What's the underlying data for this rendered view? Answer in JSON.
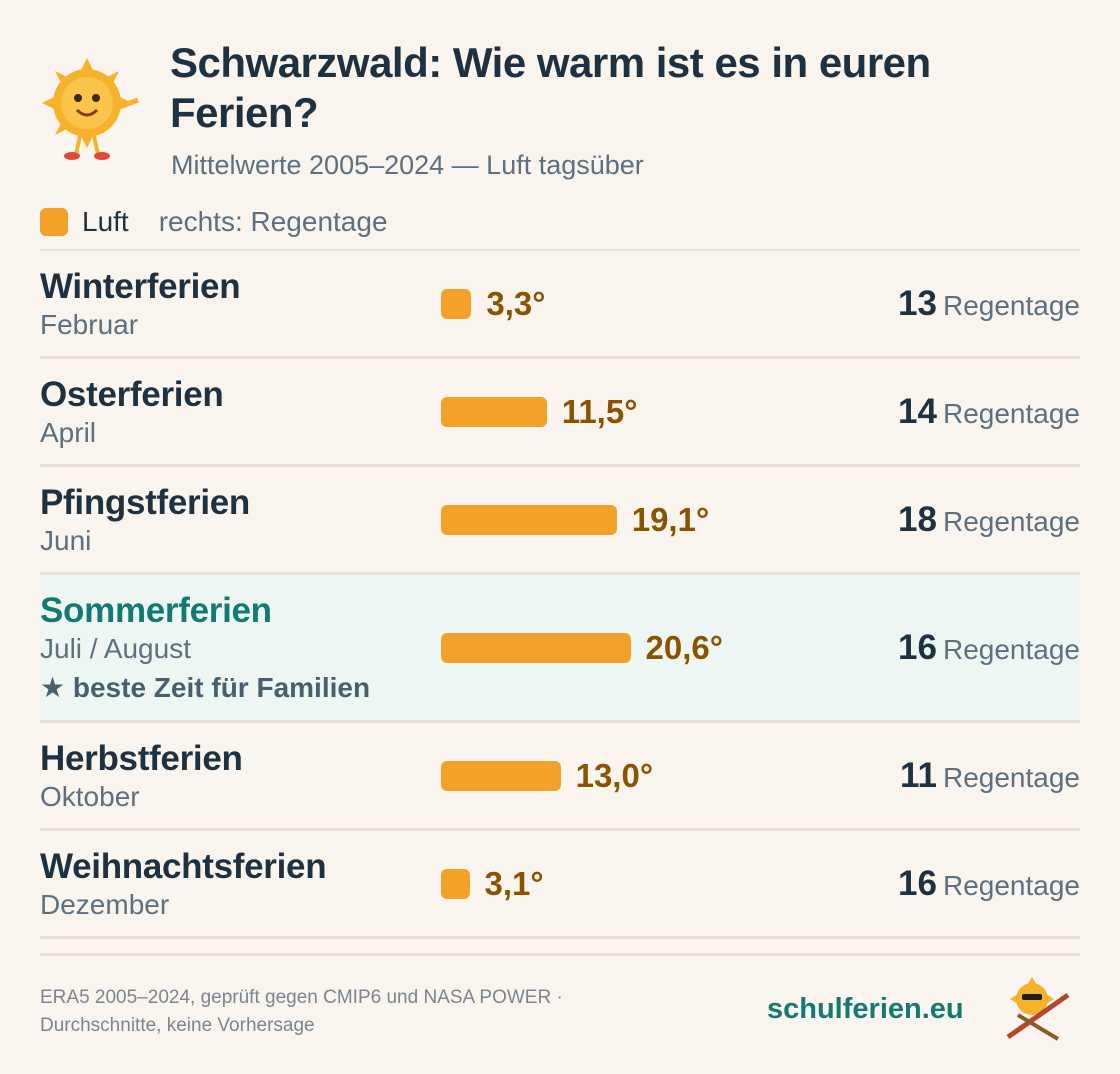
{
  "chart_data": {
    "type": "bar",
    "title": "Schwarzwald: Wie warm ist es in euren Ferien?",
    "subtitle": "Mittelwerte 2005–2024 — Luft tagsüber",
    "legend_note": "rechts: Regentage",
    "categories": [
      "Winterferien",
      "Osterferien",
      "Pfingstferien",
      "Sommerferien",
      "Herbstferien",
      "Weihnachtsferien"
    ],
    "months": [
      "Februar",
      "April",
      "Juni",
      "Juli / August",
      "Oktober",
      "Dezember"
    ],
    "notes": [
      null,
      null,
      null,
      "★ beste Zeit für Familien",
      null,
      null
    ],
    "series": [
      {
        "name": "Luft",
        "color": "#f4a12a",
        "values": [
          3.3,
          11.5,
          19.1,
          20.6,
          13.0,
          3.1
        ],
        "value_labels": [
          "3,3°",
          "11,5°",
          "19,1°",
          "20,6°",
          "13,0°",
          "3,1°"
        ]
      }
    ],
    "rain_days": {
      "unit": "Regentage",
      "values": [
        13,
        14,
        18,
        16,
        11,
        16
      ]
    },
    "footer": {
      "source": [
        "ERA5 2005–2024, geprüft gegen CMIP6 und NASA POWER ·",
        "Durchschnitte, keine Vorhersage"
      ],
      "brand": "schulferien.eu"
    }
  }
}
